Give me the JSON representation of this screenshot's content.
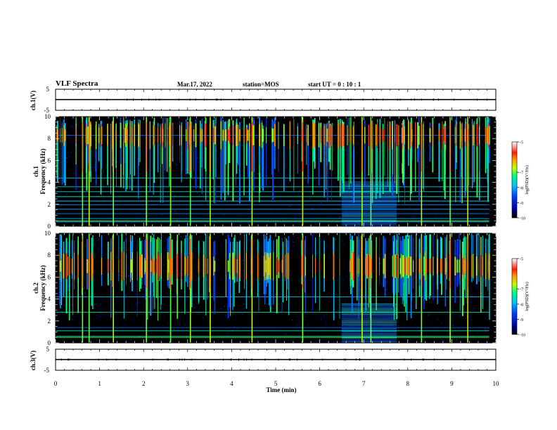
{
  "header": {
    "title": "VLF Spectra",
    "date": "Mar.17, 2022",
    "station": "station=MOS",
    "start_ut": "start UT =  0 : 10 : 1"
  },
  "colors": {
    "background": "#ffffff",
    "plot_background": "#000000",
    "waveform": "#000000",
    "colormap": [
      "#000000",
      "#00007f",
      "#0000ff",
      "#0080ff",
      "#00e0e0",
      "#00ff60",
      "#c0ff00",
      "#ffb000",
      "#ff3000",
      "#c00000",
      "#ffffff"
    ]
  },
  "chart_data": [
    {
      "type": "line",
      "panel": "waveform-top",
      "ylabel": "ch.1(V)",
      "ylim": [
        -5,
        5
      ],
      "yticks": [
        "5",
        "-5"
      ],
      "xlim": [
        0,
        10
      ],
      "series": [
        {
          "values": [
            [
              0,
              0.1
            ],
            [
              10,
              0.1
            ]
          ]
        }
      ]
    },
    {
      "type": "heatmap",
      "panel": "spectrogram-ch1",
      "ylabel": "ch.1 Frequency (kHz)",
      "ylim": [
        0,
        10
      ],
      "yticks": [
        "0",
        "2",
        "4",
        "6",
        "8",
        "10"
      ],
      "xlim": [
        0,
        10
      ],
      "data_end_min": 9.85,
      "colorbar": {
        "label": "log(PSD)(V²/Hz)",
        "range": [
          -10,
          -5
        ],
        "ticks": [
          "-5",
          "-7",
          "-8",
          "-9",
          "-10"
        ]
      },
      "dense_band": {
        "t_start": 6.5,
        "t_end": 7.75,
        "f_max": 4.0
      },
      "hum_lines_khz": [
        0.4,
        0.7,
        1.15,
        1.55,
        1.95,
        2.3,
        2.7,
        3.15,
        3.6,
        4.4,
        8.3
      ],
      "strong_bursts_min": [
        0.6,
        0.75,
        1.3,
        2.05,
        2.6,
        3.05,
        3.5,
        4.45,
        5.6,
        6.95,
        7.15,
        8.3,
        8.95,
        9.35
      ]
    },
    {
      "type": "heatmap",
      "panel": "spectrogram-ch2",
      "ylabel": "ch.2 Frequency (kHz)",
      "ylim": [
        0,
        10
      ],
      "yticks": [
        "0",
        "2",
        "4",
        "6",
        "8",
        "10"
      ],
      "xlim": [
        0,
        10
      ],
      "data_end_min": 9.85,
      "colorbar": {
        "label": "log(PSD)(V²/Hz)",
        "range": [
          -10,
          -5
        ],
        "ticks": [
          "-5",
          "-7",
          "-8",
          "-9",
          "-10"
        ]
      },
      "dense_band": {
        "t_start": 6.5,
        "t_end": 7.75,
        "f_max": 3.5
      },
      "hum_lines_khz": [
        0.6,
        1.1,
        1.4,
        2.8,
        4.2
      ],
      "strong_bursts_min": [
        0.6,
        0.75,
        1.3,
        2.05,
        2.6,
        3.05,
        3.5,
        4.45,
        5.6,
        6.95,
        7.15,
        8.3,
        8.95,
        9.35
      ]
    },
    {
      "type": "line",
      "panel": "waveform-bottom",
      "ylabel": "ch.3(V)",
      "ylim": [
        -5,
        5
      ],
      "yticks": [
        "5",
        "-5"
      ],
      "xlim": [
        0,
        10
      ],
      "series": [
        {
          "values": [
            [
              0,
              0.1
            ],
            [
              10,
              0.1
            ]
          ]
        }
      ]
    }
  ],
  "xaxis": {
    "label": "Time (min)",
    "ticks": [
      "0",
      "1",
      "2",
      "3",
      "4",
      "5",
      "6",
      "7",
      "8",
      "9",
      "10"
    ]
  }
}
